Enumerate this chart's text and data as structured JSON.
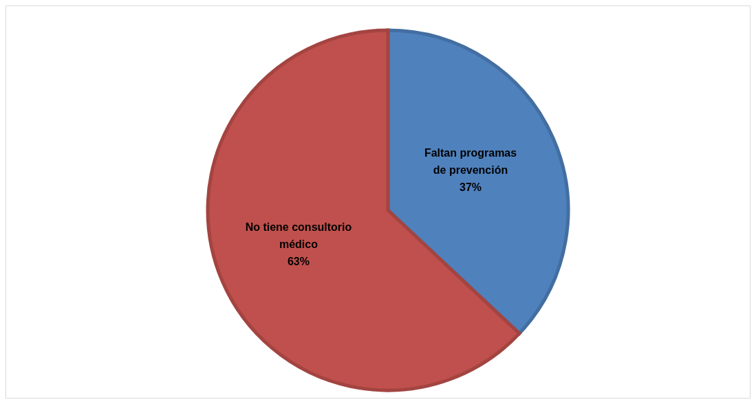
{
  "chart_data": {
    "type": "pie",
    "categories": [
      "Faltan programas de prevención",
      "No tiene consultorio médico"
    ],
    "values": [
      37,
      63
    ],
    "colors": [
      "#4f81bd",
      "#c0504d"
    ],
    "value_labels": [
      "37%",
      "63%"
    ],
    "legend": false
  }
}
